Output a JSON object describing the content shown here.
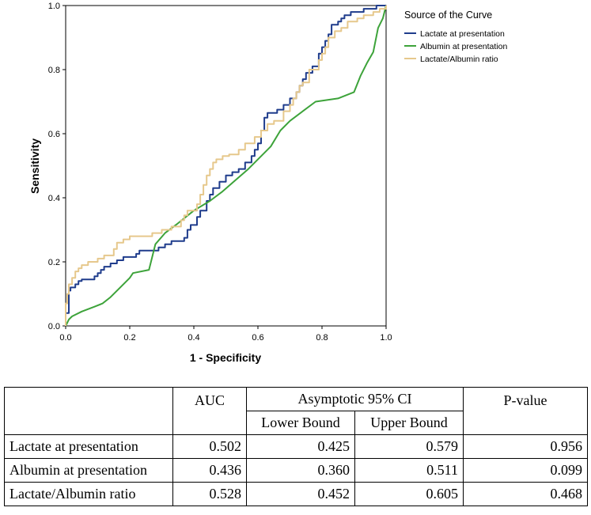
{
  "chart_data": {
    "type": "line",
    "xlabel": "1 - Specificity",
    "ylabel": "Sensitivity",
    "xlim": [
      0,
      1
    ],
    "ylim": [
      0,
      1
    ],
    "x_ticks": [
      "0.0",
      "0.2",
      "0.4",
      "0.6",
      "0.8",
      "1.0"
    ],
    "y_ticks": [
      "0.0",
      "0.2",
      "0.4",
      "0.6",
      "0.8",
      "1.0"
    ],
    "legend_title": "Source of the Curve",
    "legend_position": "right",
    "series": [
      {
        "name": "Lactate at presentation",
        "color": "#1f3c8c",
        "points": [
          [
            0,
            0
          ],
          [
            0,
            0.02
          ],
          [
            0,
            0.04
          ],
          [
            0.01,
            0.04
          ],
          [
            0.01,
            0.11
          ],
          [
            0.015,
            0.11
          ],
          [
            0.015,
            0.12
          ],
          [
            0.03,
            0.12
          ],
          [
            0.03,
            0.13
          ],
          [
            0.04,
            0.13
          ],
          [
            0.04,
            0.14
          ],
          [
            0.05,
            0.14
          ],
          [
            0.05,
            0.145
          ],
          [
            0.09,
            0.145
          ],
          [
            0.09,
            0.155
          ],
          [
            0.1,
            0.155
          ],
          [
            0.1,
            0.165
          ],
          [
            0.11,
            0.165
          ],
          [
            0.11,
            0.175
          ],
          [
            0.12,
            0.175
          ],
          [
            0.12,
            0.185
          ],
          [
            0.14,
            0.185
          ],
          [
            0.14,
            0.195
          ],
          [
            0.16,
            0.195
          ],
          [
            0.16,
            0.205
          ],
          [
            0.18,
            0.205
          ],
          [
            0.18,
            0.215
          ],
          [
            0.22,
            0.215
          ],
          [
            0.22,
            0.225
          ],
          [
            0.23,
            0.225
          ],
          [
            0.23,
            0.235
          ],
          [
            0.29,
            0.235
          ],
          [
            0.29,
            0.245
          ],
          [
            0.31,
            0.245
          ],
          [
            0.31,
            0.255
          ],
          [
            0.33,
            0.255
          ],
          [
            0.33,
            0.265
          ],
          [
            0.37,
            0.265
          ],
          [
            0.37,
            0.275
          ],
          [
            0.38,
            0.275
          ],
          [
            0.38,
            0.3
          ],
          [
            0.39,
            0.3
          ],
          [
            0.39,
            0.315
          ],
          [
            0.41,
            0.315
          ],
          [
            0.41,
            0.34
          ],
          [
            0.42,
            0.34
          ],
          [
            0.42,
            0.36
          ],
          [
            0.44,
            0.36
          ],
          [
            0.44,
            0.39
          ],
          [
            0.45,
            0.39
          ],
          [
            0.45,
            0.41
          ],
          [
            0.46,
            0.41
          ],
          [
            0.46,
            0.43
          ],
          [
            0.48,
            0.43
          ],
          [
            0.48,
            0.45
          ],
          [
            0.5,
            0.45
          ],
          [
            0.5,
            0.47
          ],
          [
            0.52,
            0.47
          ],
          [
            0.52,
            0.48
          ],
          [
            0.54,
            0.48
          ],
          [
            0.54,
            0.49
          ],
          [
            0.56,
            0.49
          ],
          [
            0.56,
            0.51
          ],
          [
            0.58,
            0.51
          ],
          [
            0.58,
            0.53
          ],
          [
            0.59,
            0.53
          ],
          [
            0.59,
            0.55
          ],
          [
            0.6,
            0.55
          ],
          [
            0.6,
            0.57
          ],
          [
            0.61,
            0.57
          ],
          [
            0.61,
            0.61
          ],
          [
            0.62,
            0.61
          ],
          [
            0.62,
            0.65
          ],
          [
            0.63,
            0.65
          ],
          [
            0.63,
            0.665
          ],
          [
            0.66,
            0.665
          ],
          [
            0.66,
            0.675
          ],
          [
            0.68,
            0.675
          ],
          [
            0.68,
            0.69
          ],
          [
            0.7,
            0.69
          ],
          [
            0.7,
            0.71
          ],
          [
            0.72,
            0.71
          ],
          [
            0.72,
            0.73
          ],
          [
            0.73,
            0.73
          ],
          [
            0.73,
            0.75
          ],
          [
            0.74,
            0.75
          ],
          [
            0.74,
            0.77
          ],
          [
            0.75,
            0.77
          ],
          [
            0.75,
            0.79
          ],
          [
            0.77,
            0.79
          ],
          [
            0.77,
            0.81
          ],
          [
            0.79,
            0.81
          ],
          [
            0.79,
            0.85
          ],
          [
            0.8,
            0.85
          ],
          [
            0.8,
            0.87
          ],
          [
            0.81,
            0.87
          ],
          [
            0.81,
            0.89
          ],
          [
            0.82,
            0.89
          ],
          [
            0.82,
            0.91
          ],
          [
            0.83,
            0.91
          ],
          [
            0.83,
            0.94
          ],
          [
            0.85,
            0.94
          ],
          [
            0.85,
            0.95
          ],
          [
            0.86,
            0.95
          ],
          [
            0.86,
            0.96
          ],
          [
            0.87,
            0.96
          ],
          [
            0.87,
            0.97
          ],
          [
            0.89,
            0.97
          ],
          [
            0.89,
            0.98
          ],
          [
            0.93,
            0.98
          ],
          [
            0.93,
            0.99
          ],
          [
            0.97,
            0.99
          ],
          [
            0.97,
            1.0
          ],
          [
            1.0,
            1.0
          ]
        ]
      },
      {
        "name": "Albumin at presentation",
        "color": "#3da33a",
        "points": [
          [
            0,
            0
          ],
          [
            0.01,
            0.02
          ],
          [
            0.02,
            0.03
          ],
          [
            0.05,
            0.045
          ],
          [
            0.09,
            0.06
          ],
          [
            0.115,
            0.07
          ],
          [
            0.14,
            0.09
          ],
          [
            0.17,
            0.12
          ],
          [
            0.2,
            0.15
          ],
          [
            0.21,
            0.165
          ],
          [
            0.26,
            0.175
          ],
          [
            0.28,
            0.255
          ],
          [
            0.31,
            0.29
          ],
          [
            0.35,
            0.32
          ],
          [
            0.4,
            0.36
          ],
          [
            0.45,
            0.39
          ],
          [
            0.49,
            0.42
          ],
          [
            0.53,
            0.455
          ],
          [
            0.57,
            0.49
          ],
          [
            0.6,
            0.52
          ],
          [
            0.64,
            0.56
          ],
          [
            0.67,
            0.61
          ],
          [
            0.7,
            0.64
          ],
          [
            0.74,
            0.67
          ],
          [
            0.78,
            0.7
          ],
          [
            0.85,
            0.71
          ],
          [
            0.9,
            0.73
          ],
          [
            0.92,
            0.78
          ],
          [
            0.94,
            0.82
          ],
          [
            0.96,
            0.855
          ],
          [
            0.975,
            0.93
          ],
          [
            0.99,
            0.96
          ],
          [
            1.0,
            1.0
          ]
        ]
      },
      {
        "name": "Lactate/Albumin ratio",
        "color": "#e6c88c",
        "points": [
          [
            0,
            0
          ],
          [
            0,
            0.07
          ],
          [
            0.005,
            0.07
          ],
          [
            0.005,
            0.1
          ],
          [
            0.01,
            0.1
          ],
          [
            0.01,
            0.13
          ],
          [
            0.02,
            0.13
          ],
          [
            0.02,
            0.15
          ],
          [
            0.03,
            0.15
          ],
          [
            0.03,
            0.17
          ],
          [
            0.04,
            0.17
          ],
          [
            0.04,
            0.18
          ],
          [
            0.05,
            0.18
          ],
          [
            0.05,
            0.19
          ],
          [
            0.07,
            0.19
          ],
          [
            0.07,
            0.2
          ],
          [
            0.1,
            0.2
          ],
          [
            0.1,
            0.21
          ],
          [
            0.12,
            0.21
          ],
          [
            0.12,
            0.22
          ],
          [
            0.15,
            0.22
          ],
          [
            0.15,
            0.24
          ],
          [
            0.16,
            0.24
          ],
          [
            0.16,
            0.26
          ],
          [
            0.18,
            0.26
          ],
          [
            0.18,
            0.27
          ],
          [
            0.2,
            0.27
          ],
          [
            0.2,
            0.28
          ],
          [
            0.27,
            0.28
          ],
          [
            0.27,
            0.29
          ],
          [
            0.3,
            0.29
          ],
          [
            0.3,
            0.3
          ],
          [
            0.33,
            0.3
          ],
          [
            0.33,
            0.31
          ],
          [
            0.36,
            0.31
          ],
          [
            0.36,
            0.33
          ],
          [
            0.37,
            0.33
          ],
          [
            0.37,
            0.345
          ],
          [
            0.38,
            0.345
          ],
          [
            0.38,
            0.36
          ],
          [
            0.41,
            0.36
          ],
          [
            0.41,
            0.38
          ],
          [
            0.42,
            0.38
          ],
          [
            0.42,
            0.41
          ],
          [
            0.43,
            0.41
          ],
          [
            0.43,
            0.44
          ],
          [
            0.44,
            0.44
          ],
          [
            0.44,
            0.47
          ],
          [
            0.45,
            0.47
          ],
          [
            0.45,
            0.49
          ],
          [
            0.46,
            0.49
          ],
          [
            0.46,
            0.51
          ],
          [
            0.47,
            0.51
          ],
          [
            0.47,
            0.52
          ],
          [
            0.49,
            0.52
          ],
          [
            0.49,
            0.53
          ],
          [
            0.51,
            0.53
          ],
          [
            0.51,
            0.535
          ],
          [
            0.54,
            0.535
          ],
          [
            0.54,
            0.55
          ],
          [
            0.56,
            0.55
          ],
          [
            0.56,
            0.57
          ],
          [
            0.59,
            0.57
          ],
          [
            0.59,
            0.59
          ],
          [
            0.61,
            0.59
          ],
          [
            0.61,
            0.61
          ],
          [
            0.63,
            0.61
          ],
          [
            0.63,
            0.63
          ],
          [
            0.65,
            0.63
          ],
          [
            0.65,
            0.64
          ],
          [
            0.68,
            0.64
          ],
          [
            0.68,
            0.67
          ],
          [
            0.7,
            0.67
          ],
          [
            0.7,
            0.69
          ],
          [
            0.71,
            0.69
          ],
          [
            0.71,
            0.71
          ],
          [
            0.72,
            0.71
          ],
          [
            0.72,
            0.73
          ],
          [
            0.73,
            0.73
          ],
          [
            0.73,
            0.75
          ],
          [
            0.74,
            0.75
          ],
          [
            0.74,
            0.76
          ],
          [
            0.76,
            0.76
          ],
          [
            0.76,
            0.8
          ],
          [
            0.79,
            0.8
          ],
          [
            0.79,
            0.83
          ],
          [
            0.8,
            0.83
          ],
          [
            0.8,
            0.85
          ],
          [
            0.81,
            0.85
          ],
          [
            0.81,
            0.87
          ],
          [
            0.82,
            0.87
          ],
          [
            0.82,
            0.9
          ],
          [
            0.84,
            0.9
          ],
          [
            0.84,
            0.92
          ],
          [
            0.86,
            0.92
          ],
          [
            0.86,
            0.93
          ],
          [
            0.88,
            0.93
          ],
          [
            0.88,
            0.95
          ],
          [
            0.91,
            0.95
          ],
          [
            0.91,
            0.96
          ],
          [
            0.93,
            0.96
          ],
          [
            0.93,
            0.97
          ],
          [
            0.96,
            0.97
          ],
          [
            0.96,
            0.98
          ],
          [
            0.98,
            0.98
          ],
          [
            0.98,
            0.99
          ],
          [
            1.0,
            0.99
          ],
          [
            1.0,
            1.0
          ]
        ]
      }
    ]
  },
  "table": {
    "headers": {
      "auc": "AUC",
      "ci": "Asymptotic 95% CI",
      "lower": "Lower Bound",
      "upper": "Upper Bound",
      "p": "P-value"
    },
    "rows": [
      {
        "label": "Lactate at presentation",
        "auc": "0.502",
        "lower": "0.425",
        "upper": "0.579",
        "p": "0.956"
      },
      {
        "label": "Albumin at presentation",
        "auc": "0.436",
        "lower": "0.360",
        "upper": "0.511",
        "p": "0.099"
      },
      {
        "label": "Lactate/Albumin ratio",
        "auc": "0.528",
        "lower": "0.452",
        "upper": "0.605",
        "p": "0.468"
      }
    ]
  }
}
